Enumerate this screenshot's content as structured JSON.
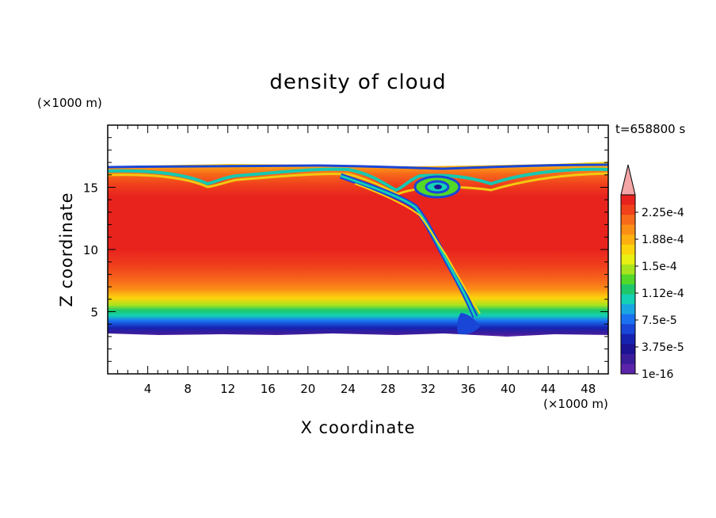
{
  "chart_data": {
    "type": "heatmap",
    "title": "density of cloud",
    "xlabel": "X coordinate",
    "ylabel": "Z coordinate",
    "x_unit": "(×1000 m)",
    "y_unit": "(×1000 m)",
    "time_label": "t=658800 s",
    "xlim": [
      0,
      50
    ],
    "ylim": [
      0,
      20
    ],
    "x_ticks": [
      4,
      8,
      12,
      16,
      20,
      24,
      28,
      32,
      36,
      40,
      44,
      48
    ],
    "x_tick_labels": [
      "4",
      "8",
      "12",
      "16",
      "20",
      "24",
      "28",
      "32",
      "36",
      "40",
      "44",
      "48"
    ],
    "y_ticks": [
      5,
      10,
      15
    ],
    "y_tick_labels": [
      "5",
      "10",
      "15"
    ],
    "grid": false,
    "colorbar": {
      "position": "right",
      "extend_max": true,
      "extend_color": "#f4a6a6",
      "labels": [
        "2.25e-4",
        "1.88e-4",
        "1.5e-4",
        "1.12e-4",
        "7.5e-5",
        "3.75e-5",
        "1e-16"
      ],
      "colors": [
        "#e8231e",
        "#f0401c",
        "#f76a1a",
        "#fb8f16",
        "#fdb010",
        "#fcd40c",
        "#e8ef12",
        "#a8e41e",
        "#52d828",
        "#1ec86a",
        "#14d0b4",
        "#18a6e2",
        "#1a72f0",
        "#1a46d8",
        "#1622b0",
        "#1c1294",
        "#3a1c9a",
        "#5a24a8"
      ]
    },
    "cloud_layer": {
      "base_km": 3.5,
      "top_km": 16.8,
      "max_density_range_km": [
        8,
        14
      ]
    }
  }
}
